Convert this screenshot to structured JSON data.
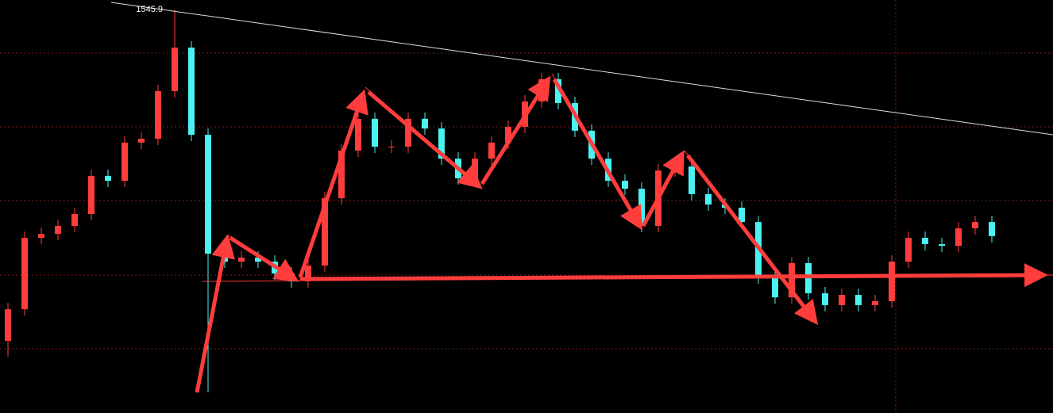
{
  "chart_data": {
    "type": "candlestick",
    "ylim": [
      1380,
      1550
    ],
    "up_color": "#ff3d3d",
    "down_color": "#4af2f2",
    "open": [
      1409.7,
      1422.7,
      1452.1,
      1453.7,
      1457.0,
      1461.9,
      1477.6,
      1475.6,
      1491.3,
      1492.9,
      1512.5,
      1530.4,
      1494.5,
      1445.6,
      1442.3,
      1444.0,
      1442.3,
      1437.4,
      1434.2,
      1440.7,
      1468.4,
      1488.0,
      1501.1,
      1489.6,
      1489.6,
      1501.1,
      1497.1,
      1484.7,
      1476.6,
      1484.7,
      1491.3,
      1497.8,
      1508.2,
      1517.4,
      1507.6,
      1496.2,
      1484.7,
      1475.6,
      1472.3,
      1457.0,
      1479.8,
      1481.5,
      1470.1,
      1465.8,
      1464.5,
      1458.6,
      1435.8,
      1427.6,
      1441.7,
      1429.3,
      1424.4,
      1428.6,
      1424.4,
      1426.0,
      1442.3,
      1452.1,
      1449.5,
      1448.8,
      1456.0,
      1458.6
    ],
    "high": [
      1425.3,
      1454.7,
      1456.3,
      1459.6,
      1464.5,
      1480.2,
      1480.2,
      1493.9,
      1495.5,
      1515.1,
      1545.9,
      1533.0,
      1497.1,
      1448.2,
      1446.6,
      1446.6,
      1444.9,
      1440.0,
      1443.3,
      1471.0,
      1490.6,
      1503.7,
      1503.7,
      1492.2,
      1503.7,
      1503.7,
      1499.7,
      1487.3,
      1487.3,
      1493.9,
      1500.4,
      1510.8,
      1520.0,
      1520.0,
      1510.2,
      1498.8,
      1487.3,
      1478.2,
      1474.9,
      1482.4,
      1484.1,
      1484.1,
      1472.7,
      1468.4,
      1467.1,
      1461.2,
      1438.4,
      1444.3,
      1444.3,
      1431.9,
      1431.2,
      1431.2,
      1428.6,
      1444.9,
      1454.7,
      1454.7,
      1452.1,
      1458.6,
      1461.2,
      1461.2
    ],
    "low": [
      1403.2,
      1420.1,
      1449.5,
      1451.1,
      1454.4,
      1459.3,
      1473.0,
      1473.0,
      1488.7,
      1490.3,
      1509.9,
      1491.9,
      1388.5,
      1439.7,
      1439.7,
      1439.7,
      1434.8,
      1431.6,
      1431.6,
      1438.1,
      1465.8,
      1485.4,
      1487.0,
      1487.0,
      1487.0,
      1494.5,
      1482.1,
      1474.0,
      1474.0,
      1482.1,
      1488.7,
      1495.2,
      1505.6,
      1505.0,
      1493.6,
      1482.1,
      1473.0,
      1469.7,
      1454.4,
      1454.4,
      1477.2,
      1467.5,
      1463.2,
      1461.9,
      1456.0,
      1433.2,
      1425.0,
      1425.0,
      1426.7,
      1421.8,
      1421.8,
      1421.8,
      1421.8,
      1423.4,
      1439.7,
      1446.9,
      1446.2,
      1446.2,
      1453.4,
      1450.2
    ],
    "close": [
      1422.7,
      1452.1,
      1453.7,
      1457.0,
      1461.9,
      1477.6,
      1475.6,
      1491.3,
      1492.9,
      1512.5,
      1530.4,
      1494.5,
      1445.6,
      1442.3,
      1444.0,
      1442.3,
      1437.4,
      1434.2,
      1440.7,
      1468.4,
      1488.0,
      1501.1,
      1489.6,
      1489.6,
      1501.1,
      1497.1,
      1484.7,
      1476.6,
      1484.7,
      1491.3,
      1497.8,
      1508.2,
      1517.4,
      1507.6,
      1496.2,
      1484.7,
      1475.6,
      1472.3,
      1457.0,
      1479.8,
      1481.5,
      1470.1,
      1465.8,
      1464.5,
      1458.6,
      1435.8,
      1427.6,
      1441.7,
      1429.3,
      1424.4,
      1428.6,
      1424.4,
      1426.0,
      1442.3,
      1452.1,
      1449.5,
      1448.8,
      1456.0,
      1458.6,
      1452.8
    ]
  }
}
